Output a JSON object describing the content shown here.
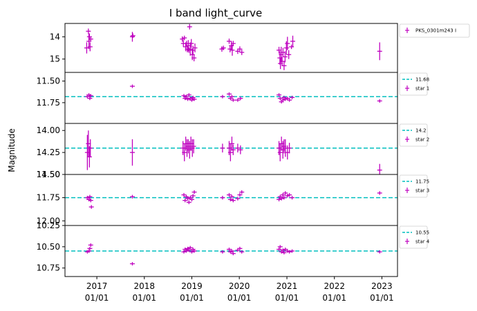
{
  "chart_data": {
    "type": "scatter",
    "title": "I band light_curve",
    "ylabel": "Magnitude",
    "xlim": [
      "2016-05-01",
      "2023-05-01"
    ],
    "x_ticks": [
      {
        "date": "2017-01-01",
        "line1": "2017",
        "line2": "01/01"
      },
      {
        "date": "2018-01-01",
        "line1": "2018",
        "line2": "01/01"
      },
      {
        "date": "2019-01-01",
        "line1": "2019",
        "line2": "01/01"
      },
      {
        "date": "2020-01-01",
        "line1": "2020",
        "line2": "01/01"
      },
      {
        "date": "2021-01-01",
        "line1": "2021",
        "line2": "01/01"
      },
      {
        "date": "2022-01-01",
        "line1": "2022",
        "line2": "01/01"
      },
      {
        "date": "2023-01-01",
        "line1": "2023",
        "line2": "01/01"
      }
    ],
    "marker_color": "#bf00bf",
    "reference_color": "#00bfbf",
    "panels": [
      {
        "name": "PKS_0301m243 I",
        "ylim": [
          15.6,
          13.4
        ],
        "yticks": [
          {
            "v": 14,
            "label": "14"
          },
          {
            "v": 15,
            "label": "15"
          }
        ],
        "reference": null,
        "points": [
          [
            "2016-10-15",
            14.5,
            0.25
          ],
          [
            "2016-10-28",
            13.75,
            0.12
          ],
          [
            "2016-11-01",
            14.2,
            0.35
          ],
          [
            "2016-11-05",
            14.0,
            0.15
          ],
          [
            "2016-11-10",
            14.45,
            0.2
          ],
          [
            "2016-11-15",
            14.1,
            0.1
          ],
          [
            "2017-10-01",
            14.0,
            0.22
          ],
          [
            "2017-10-05",
            13.95,
            0.1
          ],
          [
            "2018-10-20",
            14.1,
            0.12
          ],
          [
            "2018-10-28",
            14.3,
            0.15
          ],
          [
            "2018-11-05",
            14.05,
            0.1
          ],
          [
            "2018-11-15",
            14.45,
            0.2
          ],
          [
            "2018-11-22",
            14.3,
            0.12
          ],
          [
            "2018-11-28",
            14.55,
            0.15
          ],
          [
            "2018-12-05",
            14.4,
            0.25
          ],
          [
            "2018-12-10",
            14.6,
            0.12
          ],
          [
            "2018-12-15",
            13.55,
            0.12
          ],
          [
            "2018-12-20",
            14.55,
            0.3
          ],
          [
            "2018-12-28",
            14.3,
            0.2
          ],
          [
            "2019-01-05",
            14.8,
            0.25
          ],
          [
            "2019-01-10",
            14.6,
            0.2
          ],
          [
            "2019-01-18",
            14.95,
            0.15
          ],
          [
            "2019-01-25",
            14.5,
            0.2
          ],
          [
            "2019-08-20",
            14.55,
            0.12
          ],
          [
            "2019-09-01",
            14.5,
            0.1
          ],
          [
            "2019-10-15",
            14.2,
            0.12
          ],
          [
            "2019-10-22",
            14.55,
            0.15
          ],
          [
            "2019-11-01",
            14.4,
            0.2
          ],
          [
            "2019-11-08",
            14.6,
            0.25
          ],
          [
            "2019-11-15",
            14.3,
            0.12
          ],
          [
            "2019-12-20",
            14.65,
            0.12
          ],
          [
            "2020-01-05",
            14.55,
            0.12
          ],
          [
            "2020-01-20",
            14.7,
            0.12
          ],
          [
            "2020-11-01",
            14.6,
            0.15
          ],
          [
            "2020-11-08",
            14.95,
            0.3
          ],
          [
            "2020-11-12",
            15.2,
            0.25
          ],
          [
            "2020-11-18",
            14.8,
            0.35
          ],
          [
            "2020-11-25",
            15.1,
            0.2
          ],
          [
            "2020-12-02",
            14.7,
            0.2
          ],
          [
            "2020-12-10",
            15.3,
            0.2
          ],
          [
            "2020-12-18",
            14.9,
            0.25
          ],
          [
            "2020-12-28",
            14.5,
            0.3
          ],
          [
            "2021-01-05",
            14.3,
            0.3
          ],
          [
            "2021-01-15",
            14.8,
            0.2
          ],
          [
            "2021-02-05",
            14.45,
            0.1
          ],
          [
            "2021-02-15",
            14.2,
            0.25
          ],
          [
            "2022-12-15",
            14.65,
            0.4
          ]
        ]
      },
      {
        "name": "star 1",
        "ylim": [
          11.99,
          11.4
        ],
        "yticks": [
          {
            "v": 11.5,
            "label": "11.50"
          },
          {
            "v": 11.75,
            "label": "11.75"
          }
        ],
        "reference": {
          "value": 11.68,
          "label": "11.68"
        },
        "points": [
          [
            "2016-10-20",
            11.68,
            0.02
          ],
          [
            "2016-11-01",
            11.66,
            0.02
          ],
          [
            "2016-11-08",
            11.7,
            0.02
          ],
          [
            "2016-11-15",
            11.67,
            0.02
          ],
          [
            "2017-10-01",
            11.56,
            0.02
          ],
          [
            "2018-11-01",
            11.67,
            0.02
          ],
          [
            "2018-11-10",
            11.7,
            0.02
          ],
          [
            "2018-11-20",
            11.68,
            0.02
          ],
          [
            "2018-12-01",
            11.71,
            0.02
          ],
          [
            "2018-12-10",
            11.66,
            0.02
          ],
          [
            "2018-12-20",
            11.7,
            0.02
          ],
          [
            "2019-01-01",
            11.72,
            0.02
          ],
          [
            "2019-01-10",
            11.69,
            0.02
          ],
          [
            "2019-01-20",
            11.71,
            0.02
          ],
          [
            "2019-08-25",
            11.68,
            0.02
          ],
          [
            "2019-10-15",
            11.65,
            0.02
          ],
          [
            "2019-10-25",
            11.7,
            0.02
          ],
          [
            "2019-11-05",
            11.68,
            0.02
          ],
          [
            "2019-11-15",
            11.72,
            0.02
          ],
          [
            "2019-12-20",
            11.72,
            0.02
          ],
          [
            "2020-01-10",
            11.7,
            0.02
          ],
          [
            "2020-11-01",
            11.66,
            0.02
          ],
          [
            "2020-11-10",
            11.7,
            0.02
          ],
          [
            "2020-11-20",
            11.74,
            0.02
          ],
          [
            "2020-12-01",
            11.72,
            0.02
          ],
          [
            "2020-12-10",
            11.69,
            0.02
          ],
          [
            "2020-12-20",
            11.71,
            0.02
          ],
          [
            "2021-01-05",
            11.7,
            0.02
          ],
          [
            "2021-01-20",
            11.72,
            0.02
          ],
          [
            "2021-02-10",
            11.69,
            0.02
          ],
          [
            "2022-12-15",
            11.73,
            0.02
          ]
        ]
      },
      {
        "name": "star 2",
        "ylim": [
          14.5,
          13.92
        ],
        "yticks": [
          {
            "v": 14.0,
            "label": "14.00"
          },
          {
            "v": 14.25,
            "label": "14.25"
          },
          {
            "v": 14.5,
            "label": "14.50"
          }
        ],
        "reference": {
          "value": 14.2,
          "label": "14.2"
        },
        "points": [
          [
            "2016-10-20",
            14.25,
            0.2
          ],
          [
            "2016-10-28",
            14.15,
            0.15
          ],
          [
            "2016-11-05",
            14.3,
            0.12
          ],
          [
            "2016-11-12",
            14.2,
            0.1
          ],
          [
            "2017-10-01",
            14.25,
            0.15
          ],
          [
            "2018-10-25",
            14.2,
            0.08
          ],
          [
            "2018-11-05",
            14.25,
            0.1
          ],
          [
            "2018-11-15",
            14.15,
            0.08
          ],
          [
            "2018-11-25",
            14.2,
            0.1
          ],
          [
            "2018-12-05",
            14.18,
            0.08
          ],
          [
            "2018-12-15",
            14.22,
            0.1
          ],
          [
            "2018-12-25",
            14.15,
            0.08
          ],
          [
            "2019-01-05",
            14.2,
            0.1
          ],
          [
            "2019-01-15",
            14.18,
            0.08
          ],
          [
            "2019-08-25",
            14.2,
            0.05
          ],
          [
            "2019-10-15",
            14.2,
            0.08
          ],
          [
            "2019-10-25",
            14.25,
            0.1
          ],
          [
            "2019-11-05",
            14.15,
            0.08
          ],
          [
            "2019-11-15",
            14.22,
            0.06
          ],
          [
            "2019-12-20",
            14.2,
            0.05
          ],
          [
            "2020-01-10",
            14.22,
            0.05
          ],
          [
            "2020-11-01",
            14.2,
            0.08
          ],
          [
            "2020-11-10",
            14.25,
            0.1
          ],
          [
            "2020-11-20",
            14.15,
            0.08
          ],
          [
            "2020-12-01",
            14.22,
            0.1
          ],
          [
            "2020-12-10",
            14.18,
            0.08
          ],
          [
            "2020-12-20",
            14.2,
            0.1
          ],
          [
            "2021-01-05",
            14.25,
            0.08
          ],
          [
            "2021-01-20",
            14.2,
            0.06
          ],
          [
            "2022-12-15",
            14.45,
            0.07
          ]
        ]
      },
      {
        "name": "star 3",
        "ylim": [
          12.05,
          11.5
        ],
        "yticks": [
          {
            "v": 11.5,
            "label": "11.50"
          },
          {
            "v": 11.75,
            "label": "11.75"
          },
          {
            "v": 12.0,
            "label": "12.00"
          }
        ],
        "reference": {
          "value": 11.75,
          "label": "11.75"
        },
        "points": [
          [
            "2016-10-20",
            11.75,
            0.02
          ],
          [
            "2016-11-01",
            11.77,
            0.02
          ],
          [
            "2016-11-08",
            11.74,
            0.02
          ],
          [
            "2016-11-15",
            11.78,
            0.02
          ],
          [
            "2016-11-20",
            11.85,
            0.02
          ],
          [
            "2017-10-01",
            11.74,
            0.02
          ],
          [
            "2018-11-01",
            11.72,
            0.02
          ],
          [
            "2018-11-10",
            11.78,
            0.02
          ],
          [
            "2018-11-20",
            11.74,
            0.02
          ],
          [
            "2018-12-01",
            11.76,
            0.02
          ],
          [
            "2018-12-10",
            11.8,
            0.02
          ],
          [
            "2018-12-20",
            11.75,
            0.02
          ],
          [
            "2019-01-01",
            11.77,
            0.02
          ],
          [
            "2019-01-10",
            11.73,
            0.02
          ],
          [
            "2019-01-20",
            11.69,
            0.02
          ],
          [
            "2019-08-25",
            11.75,
            0.02
          ],
          [
            "2019-10-15",
            11.72,
            0.02
          ],
          [
            "2019-10-25",
            11.77,
            0.02
          ],
          [
            "2019-11-05",
            11.74,
            0.02
          ],
          [
            "2019-11-15",
            11.78,
            0.02
          ],
          [
            "2019-12-20",
            11.76,
            0.02
          ],
          [
            "2020-01-05",
            11.72,
            0.02
          ],
          [
            "2020-01-20",
            11.69,
            0.02
          ],
          [
            "2020-11-01",
            11.77,
            0.02
          ],
          [
            "2020-11-10",
            11.74,
            0.02
          ],
          [
            "2020-11-20",
            11.76,
            0.02
          ],
          [
            "2020-12-01",
            11.72,
            0.02
          ],
          [
            "2020-12-10",
            11.75,
            0.02
          ],
          [
            "2020-12-20",
            11.7,
            0.02
          ],
          [
            "2021-01-05",
            11.73,
            0.02
          ],
          [
            "2021-01-20",
            11.72,
            0.02
          ],
          [
            "2021-02-10",
            11.75,
            0.02
          ],
          [
            "2022-12-15",
            11.7,
            0.02
          ]
        ]
      },
      {
        "name": "star 4",
        "ylim": [
          10.85,
          10.25
        ],
        "yticks": [
          {
            "v": 10.25,
            "label": "10.25"
          },
          {
            "v": 10.5,
            "label": "10.50"
          },
          {
            "v": 10.75,
            "label": "10.75"
          }
        ],
        "reference": {
          "value": 10.55,
          "label": "10.55"
        },
        "points": [
          [
            "2016-10-20",
            10.56,
            0.02
          ],
          [
            "2016-11-01",
            10.55,
            0.02
          ],
          [
            "2016-11-08",
            10.52,
            0.02
          ],
          [
            "2016-11-15",
            10.48,
            0.02
          ],
          [
            "2017-10-01",
            10.7,
            0.02
          ],
          [
            "2018-11-01",
            10.56,
            0.02
          ],
          [
            "2018-11-10",
            10.53,
            0.02
          ],
          [
            "2018-11-20",
            10.55,
            0.02
          ],
          [
            "2018-12-01",
            10.52,
            0.02
          ],
          [
            "2018-12-10",
            10.54,
            0.02
          ],
          [
            "2018-12-20",
            10.51,
            0.02
          ],
          [
            "2019-01-01",
            10.56,
            0.02
          ],
          [
            "2019-01-10",
            10.53,
            0.02
          ],
          [
            "2019-01-20",
            10.55,
            0.02
          ],
          [
            "2019-08-25",
            10.56,
            0.02
          ],
          [
            "2019-10-15",
            10.53,
            0.02
          ],
          [
            "2019-10-25",
            10.56,
            0.02
          ],
          [
            "2019-11-05",
            10.55,
            0.02
          ],
          [
            "2019-11-15",
            10.58,
            0.02
          ],
          [
            "2019-12-20",
            10.54,
            0.02
          ],
          [
            "2020-01-05",
            10.52,
            0.02
          ],
          [
            "2020-01-20",
            10.56,
            0.02
          ],
          [
            "2020-11-01",
            10.53,
            0.02
          ],
          [
            "2020-11-10",
            10.5,
            0.02
          ],
          [
            "2020-11-20",
            10.56,
            0.02
          ],
          [
            "2020-12-01",
            10.54,
            0.02
          ],
          [
            "2020-12-10",
            10.57,
            0.02
          ],
          [
            "2020-12-20",
            10.53,
            0.02
          ],
          [
            "2021-01-05",
            10.55,
            0.02
          ],
          [
            "2021-01-20",
            10.56,
            0.02
          ],
          [
            "2021-02-10",
            10.55,
            0.02
          ],
          [
            "2022-12-15",
            10.56,
            0.02
          ]
        ]
      }
    ]
  }
}
